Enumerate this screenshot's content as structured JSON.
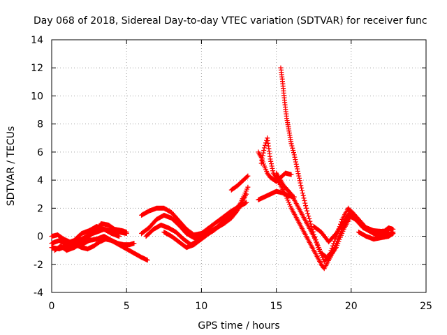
{
  "chart_data": {
    "type": "scatter",
    "title": "Day 068 of 2018, Sidereal Day-to-day VTEC variation (SDTVAR) for receiver func",
    "xlabel": "GPS time / hours",
    "ylabel": "SDTVAR / TECUs",
    "xlim": [
      0,
      25
    ],
    "ylim": [
      -4,
      14
    ],
    "xticks": [
      0,
      5,
      10,
      15,
      20,
      25
    ],
    "yticks": [
      -4,
      -2,
      0,
      2,
      4,
      6,
      8,
      10,
      12,
      14
    ],
    "grid": true,
    "marker": "+",
    "color": "#ff0000",
    "tracks": [
      {
        "x": [
          0.0,
          0.5,
          1.0,
          1.5,
          2.0,
          2.5,
          3.0,
          3.5,
          4.0,
          4.5,
          5.0
        ],
        "y": [
          -0.5,
          -0.3,
          -0.6,
          -0.4,
          -0.2,
          0.1,
          0.3,
          0.5,
          0.4,
          0.3,
          0.2
        ]
      },
      {
        "x": [
          0.0,
          0.5,
          1.0,
          1.5,
          2.0,
          2.5,
          3.0,
          3.5,
          4.0,
          4.5,
          5.0,
          5.5,
          6.0,
          6.4
        ],
        "y": [
          -0.8,
          -0.9,
          -0.7,
          -0.5,
          -0.6,
          -0.3,
          -0.2,
          0.0,
          -0.3,
          -0.6,
          -0.9,
          -1.2,
          -1.5,
          -1.7
        ]
      },
      {
        "x": [
          0.2,
          0.6,
          1.0,
          1.5,
          2.0,
          2.5,
          3.0,
          3.3,
          3.8,
          4.2,
          4.7,
          5.0
        ],
        "y": [
          -1.0,
          -0.7,
          -1.0,
          -0.8,
          -0.5,
          0.0,
          0.5,
          0.9,
          0.8,
          0.5,
          0.4,
          0.3
        ]
      },
      {
        "x": [
          0.0,
          0.4,
          0.8,
          1.2,
          1.6,
          2.0,
          2.4,
          2.8,
          3.2,
          3.6,
          4.0,
          4.4,
          4.8,
          5.2,
          5.5
        ],
        "y": [
          0.0,
          0.1,
          -0.2,
          -0.4,
          -0.6,
          -0.8,
          -0.9,
          -0.7,
          -0.4,
          -0.2,
          -0.3,
          -0.5,
          -0.6,
          -0.6,
          -0.5
        ]
      },
      {
        "x": [
          1.0,
          1.5,
          2.0,
          2.5,
          3.0,
          3.5,
          4.0,
          4.5
        ],
        "y": [
          -0.5,
          -0.3,
          0.2,
          0.4,
          0.7,
          0.5,
          0.2,
          0.0
        ]
      },
      {
        "x": [
          6.0,
          6.5,
          7.0,
          7.5,
          8.0,
          8.5,
          9.0,
          9.5,
          10.0,
          10.5,
          11.0,
          11.5,
          12.0,
          12.5,
          13.0
        ],
        "y": [
          1.5,
          1.8,
          2.0,
          2.0,
          1.7,
          1.1,
          0.5,
          0.1,
          0.2,
          0.6,
          1.0,
          1.4,
          1.8,
          2.1,
          2.4
        ]
      },
      {
        "x": [
          6.0,
          6.5,
          7.0,
          7.5,
          8.0,
          8.5,
          9.0,
          9.5,
          10.0,
          10.5,
          11.0,
          11.5,
          12.0,
          12.5,
          13.0
        ],
        "y": [
          0.2,
          0.6,
          1.2,
          1.5,
          1.3,
          0.8,
          0.2,
          -0.1,
          -0.1,
          0.3,
          0.6,
          0.9,
          1.3,
          2.0,
          3.0
        ]
      },
      {
        "x": [
          6.3,
          6.8,
          7.3,
          7.8,
          8.3,
          8.8,
          9.3,
          9.8,
          10.3,
          10.8,
          11.3,
          11.8,
          12.3,
          12.8,
          13.1
        ],
        "y": [
          0.0,
          0.5,
          0.8,
          0.6,
          0.3,
          -0.2,
          -0.6,
          -0.3,
          0.1,
          0.4,
          0.8,
          1.2,
          1.7,
          2.8,
          3.5
        ]
      },
      {
        "x": [
          7.5,
          8.0,
          8.5,
          9.0,
          9.5,
          10.0,
          10.5,
          11.0,
          11.5,
          12.0,
          12.5
        ],
        "y": [
          0.3,
          0.0,
          -0.4,
          -0.8,
          -0.6,
          -0.2,
          0.2,
          0.6,
          1.1,
          1.6,
          2.2
        ]
      },
      {
        "x": [
          12.0,
          12.4,
          12.8,
          13.1
        ],
        "y": [
          3.3,
          3.6,
          4.0,
          4.3
        ]
      },
      {
        "x": [
          13.8,
          14.0,
          14.2,
          14.4,
          14.6,
          15.0,
          15.3,
          15.6,
          16.0
        ],
        "y": [
          6.0,
          5.6,
          5.0,
          4.5,
          4.2,
          3.9,
          4.2,
          4.5,
          4.4
        ]
      },
      {
        "x": [
          13.8,
          14.2,
          14.6,
          15.0,
          15.4,
          15.8,
          16.2
        ],
        "y": [
          2.6,
          2.8,
          3.0,
          3.2,
          3.1,
          2.9,
          2.8
        ]
      },
      {
        "x": [
          14.0,
          14.2,
          14.4,
          14.6,
          14.8,
          15.2,
          15.6,
          16.0,
          16.5,
          17.0,
          17.5,
          18.0,
          18.2,
          18.6,
          19.0,
          19.5,
          19.8,
          20.3,
          20.8,
          21.5,
          22.5
        ],
        "y": [
          5.2,
          6.3,
          7.0,
          5.5,
          4.5,
          3.8,
          3.0,
          2.0,
          1.0,
          0.0,
          -1.0,
          -2.0,
          -2.3,
          -1.5,
          -0.5,
          0.8,
          1.5,
          1.2,
          0.6,
          0.3,
          0.4
        ]
      },
      {
        "x": [
          15.3,
          15.4,
          15.5,
          15.6,
          15.7,
          15.8,
          15.9,
          16.0,
          16.2,
          16.4,
          16.6,
          17.0,
          17.4,
          17.8,
          18.2,
          18.6,
          19.0,
          19.4,
          19.8,
          20.2,
          20.8,
          21.5,
          22.5
        ],
        "y": [
          12.0,
          11.2,
          10.2,
          9.2,
          8.4,
          7.8,
          7.2,
          6.6,
          5.8,
          4.8,
          3.8,
          2.0,
          0.5,
          -0.8,
          -1.8,
          -1.2,
          0.0,
          1.2,
          2.0,
          1.4,
          0.7,
          0.4,
          0.3
        ]
      },
      {
        "x": [
          15.0,
          15.5,
          16.0,
          16.5,
          17.0,
          17.5,
          18.0,
          18.5,
          19.0,
          19.5,
          20.0,
          20.5,
          21.0,
          21.5,
          22.0,
          22.5,
          22.8
        ],
        "y": [
          4.5,
          3.6,
          3.0,
          2.0,
          1.0,
          0.0,
          -1.2,
          -1.6,
          -0.8,
          0.5,
          1.5,
          1.0,
          0.5,
          0.2,
          0.0,
          0.1,
          0.3
        ]
      },
      {
        "x": [
          17.5,
          18.0,
          18.5,
          19.0,
          19.5,
          20.0,
          20.5,
          21.0,
          21.5,
          22.0,
          22.5,
          22.8
        ],
        "y": [
          0.7,
          0.3,
          -0.4,
          0.2,
          1.0,
          1.8,
          1.2,
          0.6,
          0.3,
          0.2,
          0.6,
          0.5
        ]
      },
      {
        "x": [
          20.5,
          21.0,
          21.5,
          22.0,
          22.5,
          22.8
        ],
        "y": [
          0.3,
          0.0,
          -0.2,
          -0.1,
          0.0,
          0.2
        ]
      }
    ]
  }
}
